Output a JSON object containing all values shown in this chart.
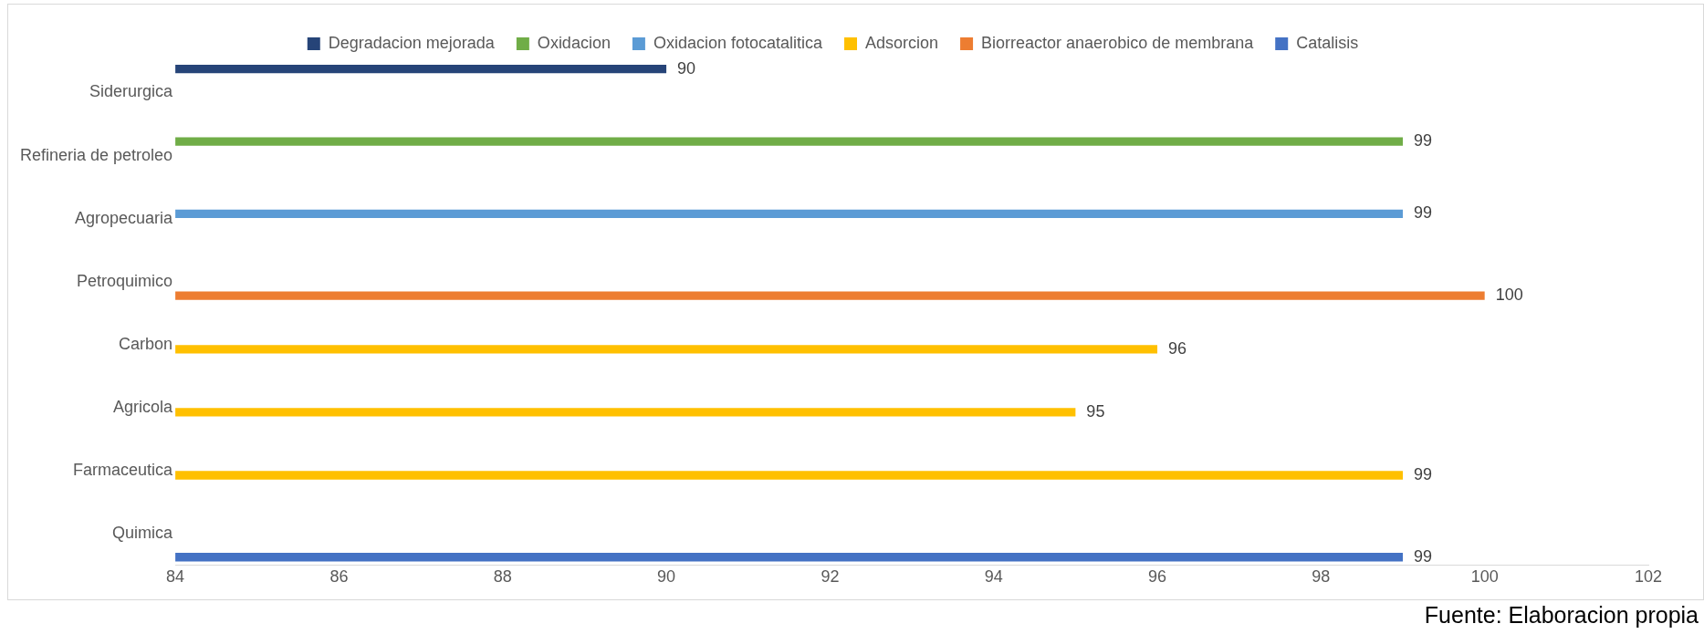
{
  "chart_data": {
    "type": "bar",
    "orientation": "horizontal",
    "categories": [
      "Siderurgica",
      "Refineria de petroleo",
      "Agropecuaria",
      "Petroquimico",
      "Carbon",
      "Agricola",
      "Farmaceutica",
      "Quimica"
    ],
    "series": [
      {
        "name": "Degradacion mejorada",
        "color": "#264478",
        "values": [
          90,
          null,
          null,
          null,
          null,
          null,
          null,
          null
        ]
      },
      {
        "name": "Oxidacion",
        "color": "#70ad47",
        "values": [
          null,
          99,
          null,
          null,
          null,
          null,
          null,
          null
        ]
      },
      {
        "name": "Oxidacion fotocatalitica",
        "color": "#5b9bd5",
        "values": [
          null,
          null,
          99,
          null,
          null,
          null,
          null,
          null
        ]
      },
      {
        "name": "Adsorcion",
        "color": "#ffc000",
        "values": [
          null,
          null,
          null,
          null,
          96,
          95,
          99,
          null
        ]
      },
      {
        "name": "Biorreactor anaerobico de membrana",
        "color": "#ed7d31",
        "values": [
          null,
          null,
          null,
          100,
          null,
          null,
          null,
          null
        ]
      },
      {
        "name": "Catalisis",
        "color": "#4472c4",
        "values": [
          null,
          null,
          null,
          null,
          null,
          null,
          null,
          99
        ]
      }
    ],
    "xlim": [
      84,
      102
    ],
    "xticks": [
      84,
      86,
      88,
      90,
      92,
      94,
      96,
      98,
      100,
      102
    ],
    "grid": false,
    "legend": "top",
    "data_labels": true,
    "annotations": [
      "Fuente: Elaboracion propia"
    ]
  }
}
